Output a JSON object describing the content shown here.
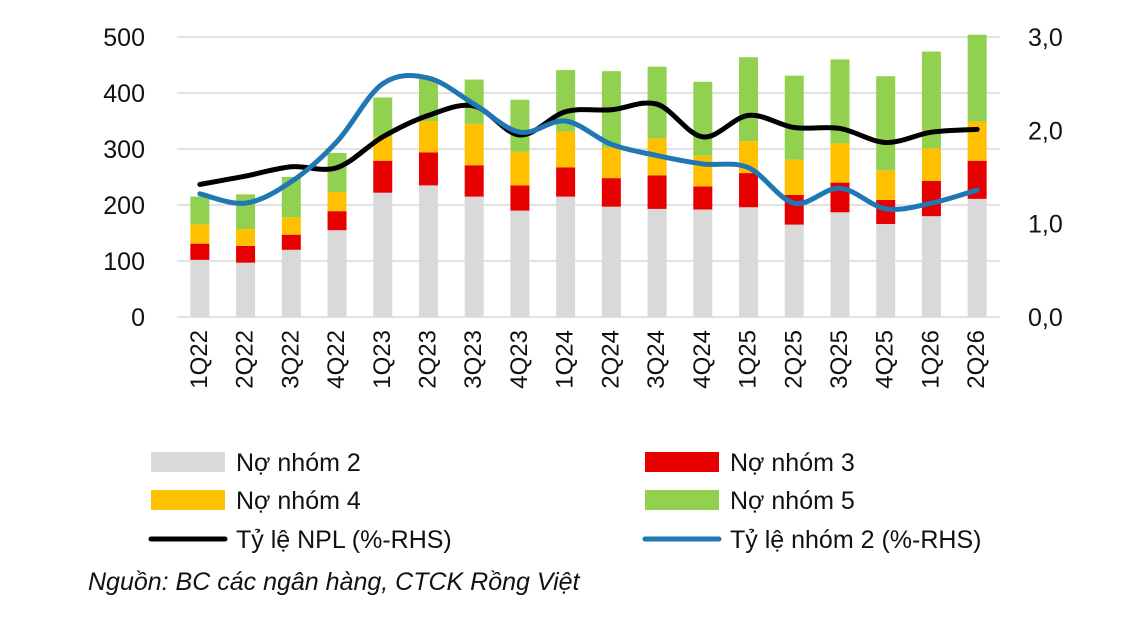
{
  "chart_data": {
    "type": "bar",
    "stacked": true,
    "categories": [
      "1Q22",
      "2Q22",
      "3Q22",
      "4Q22",
      "1Q23",
      "2Q23",
      "3Q23",
      "4Q23",
      "1Q24",
      "2Q24",
      "3Q24",
      "4Q24",
      "1Q25",
      "2Q25",
      "3Q25",
      "4Q25",
      "1Q26",
      "2Q26"
    ],
    "series": [
      {
        "name": "Nợ nhóm 2",
        "chart": "bar",
        "axis": "left",
        "color": "#d9d9d9",
        "values": [
          102,
          97,
          120,
          155,
          222,
          235,
          215,
          190,
          215,
          197,
          193,
          192,
          196,
          165,
          187,
          166,
          180,
          211
        ]
      },
      {
        "name": "Nợ nhóm 3",
        "chart": "bar",
        "axis": "left",
        "color": "#e60000",
        "values": [
          29,
          30,
          27,
          34,
          57,
          59,
          56,
          45,
          52,
          51,
          60,
          41,
          61,
          53,
          53,
          43,
          63,
          68
        ]
      },
      {
        "name": "Nợ nhóm 4",
        "chart": "bar",
        "axis": "left",
        "color": "#ffc000",
        "values": [
          34,
          30,
          31,
          34,
          43,
          56,
          74,
          60,
          64,
          54,
          66,
          55,
          57,
          63,
          70,
          53,
          58,
          70
        ]
      },
      {
        "name": "Nợ nhóm 5",
        "chart": "bar",
        "axis": "left",
        "color": "#92d050",
        "values": [
          50,
          62,
          72,
          70,
          70,
          75,
          79,
          93,
          110,
          137,
          128,
          132,
          150,
          150,
          150,
          168,
          173,
          155
        ]
      },
      {
        "name": "Tỷ lệ NPL (%-RHS)",
        "chart": "line",
        "axis": "right",
        "color": "#000000",
        "values": [
          1.42,
          1.51,
          1.61,
          1.6,
          1.93,
          2.16,
          2.26,
          1.95,
          2.2,
          2.22,
          2.28,
          1.93,
          2.16,
          2.03,
          2.02,
          1.87,
          1.98,
          2.01
        ]
      },
      {
        "name": "Tỷ lệ nhóm 2 (%-RHS)",
        "chart": "line",
        "axis": "right",
        "color": "#1f77b4",
        "values": [
          1.32,
          1.22,
          1.45,
          1.88,
          2.5,
          2.56,
          2.28,
          1.98,
          2.1,
          1.85,
          1.73,
          1.64,
          1.6,
          1.22,
          1.38,
          1.16,
          1.22,
          1.36
        ]
      }
    ],
    "y_left": {
      "ticks": [
        "0",
        "100",
        "200",
        "300",
        "400",
        "500"
      ],
      "ylim": [
        0,
        500
      ]
    },
    "y_right": {
      "ticks": [
        "0,0",
        "1,0",
        "2,0",
        "3,0"
      ],
      "ylim": [
        0,
        3
      ]
    },
    "grid": true,
    "legend_position": "bottom",
    "source": "Nguồn: BC các ngân hàng, CTCK Rồng Việt"
  }
}
